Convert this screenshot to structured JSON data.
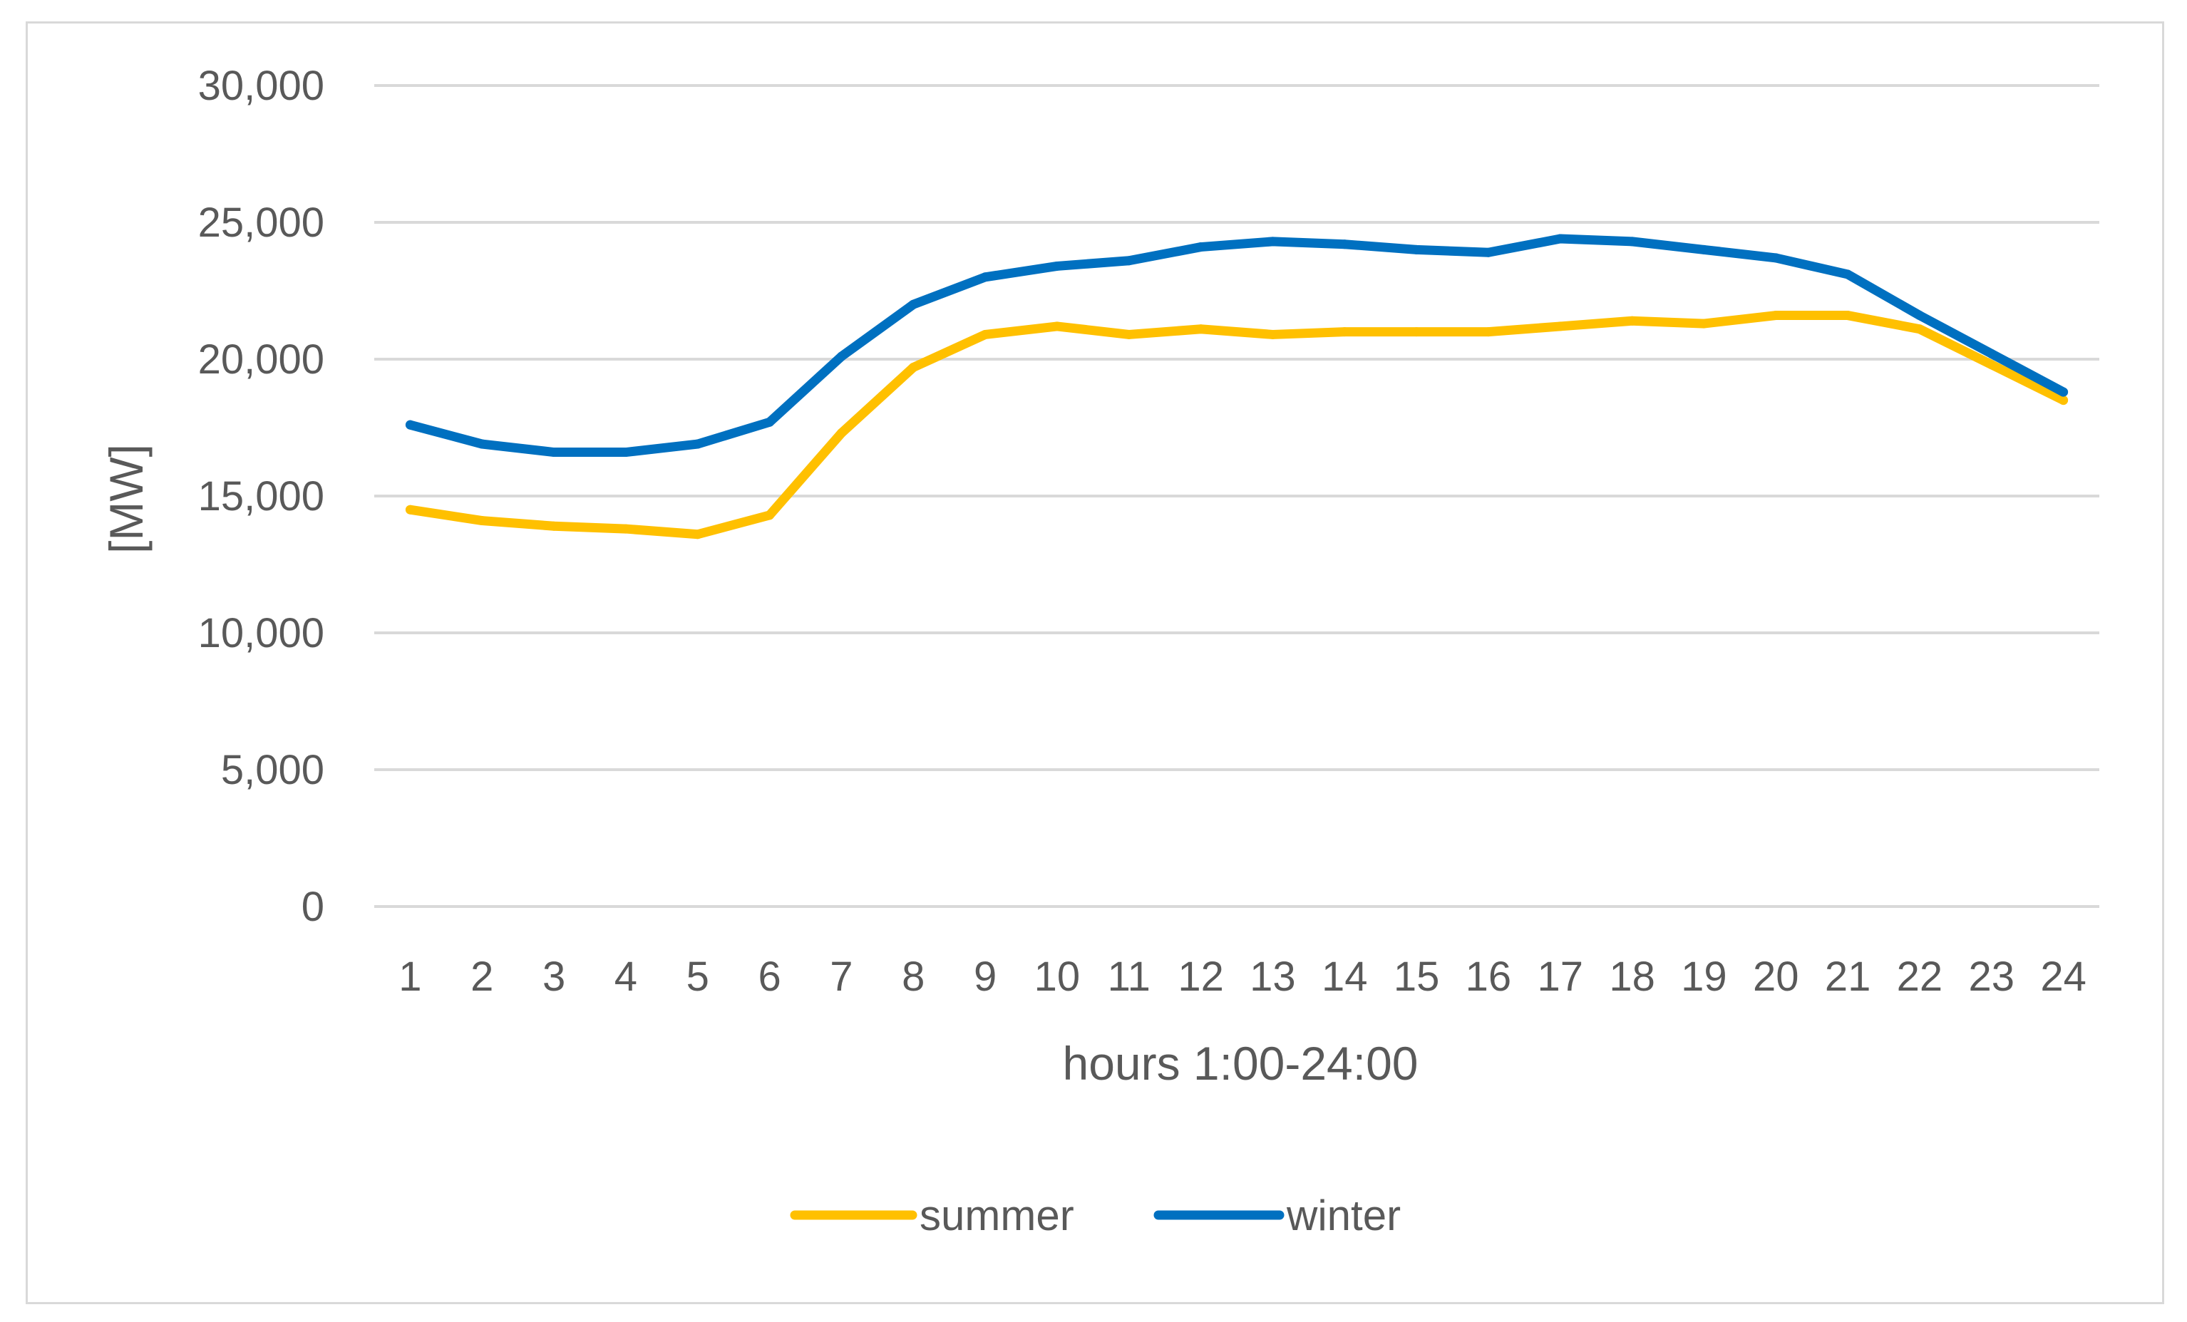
{
  "chart_data": {
    "type": "line",
    "title": "",
    "xlabel": "hours 1:00-24:00",
    "ylabel": "[MW]",
    "categories": [
      "1",
      "2",
      "3",
      "4",
      "5",
      "6",
      "7",
      "8",
      "9",
      "10",
      "11",
      "12",
      "13",
      "14",
      "15",
      "16",
      "17",
      "18",
      "19",
      "20",
      "21",
      "22",
      "23",
      "24"
    ],
    "ylim": [
      0,
      30000
    ],
    "yticks": [
      0,
      5000,
      10000,
      15000,
      20000,
      25000,
      30000
    ],
    "ytick_labels": [
      "0",
      "5,000",
      "10,000",
      "15,000",
      "20,000",
      "25,000",
      "30,000"
    ],
    "grid": true,
    "legend_position": "bottom",
    "series": [
      {
        "name": "summer",
        "color": "#FFC000",
        "values": [
          14500,
          14100,
          13900,
          13800,
          13600,
          14300,
          17300,
          19700,
          20900,
          21200,
          20900,
          21100,
          20900,
          21000,
          21000,
          21000,
          21200,
          21400,
          21300,
          21600,
          21600,
          21100,
          19800,
          18500
        ]
      },
      {
        "name": "winter",
        "color": "#0070C0",
        "values": [
          17600,
          16900,
          16600,
          16600,
          16900,
          17700,
          20100,
          22000,
          23000,
          23400,
          23600,
          24100,
          24300,
          24200,
          24000,
          23900,
          24400,
          24300,
          24000,
          23700,
          23100,
          21600,
          20200,
          18800
        ]
      }
    ]
  }
}
